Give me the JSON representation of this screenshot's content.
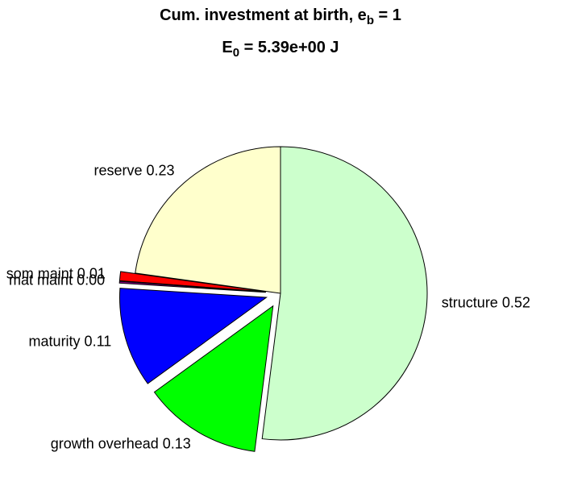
{
  "chart_data": {
    "type": "pie",
    "title": {
      "text": "Cum. investment at birth, e",
      "subscript": "b",
      "suffix": " = 1"
    },
    "subtitle": {
      "text": "E",
      "subscript": "0",
      "suffix": " = 5.39e+00 J"
    },
    "labels": [
      "structure 0.52",
      "growth overhead 0.13",
      "maturity 0.11",
      "mat maint 0.00",
      "som maint 0.01",
      "reserve 0.23"
    ],
    "values": [
      0.52,
      0.13,
      0.11,
      0.002,
      0.01,
      0.228
    ],
    "colors": [
      "#ccffcc",
      "#00ff00",
      "#0000ff",
      "#800080",
      "#ff0000",
      "#ffffcc"
    ],
    "explode": [
      0,
      1,
      1,
      1,
      1,
      0
    ]
  }
}
